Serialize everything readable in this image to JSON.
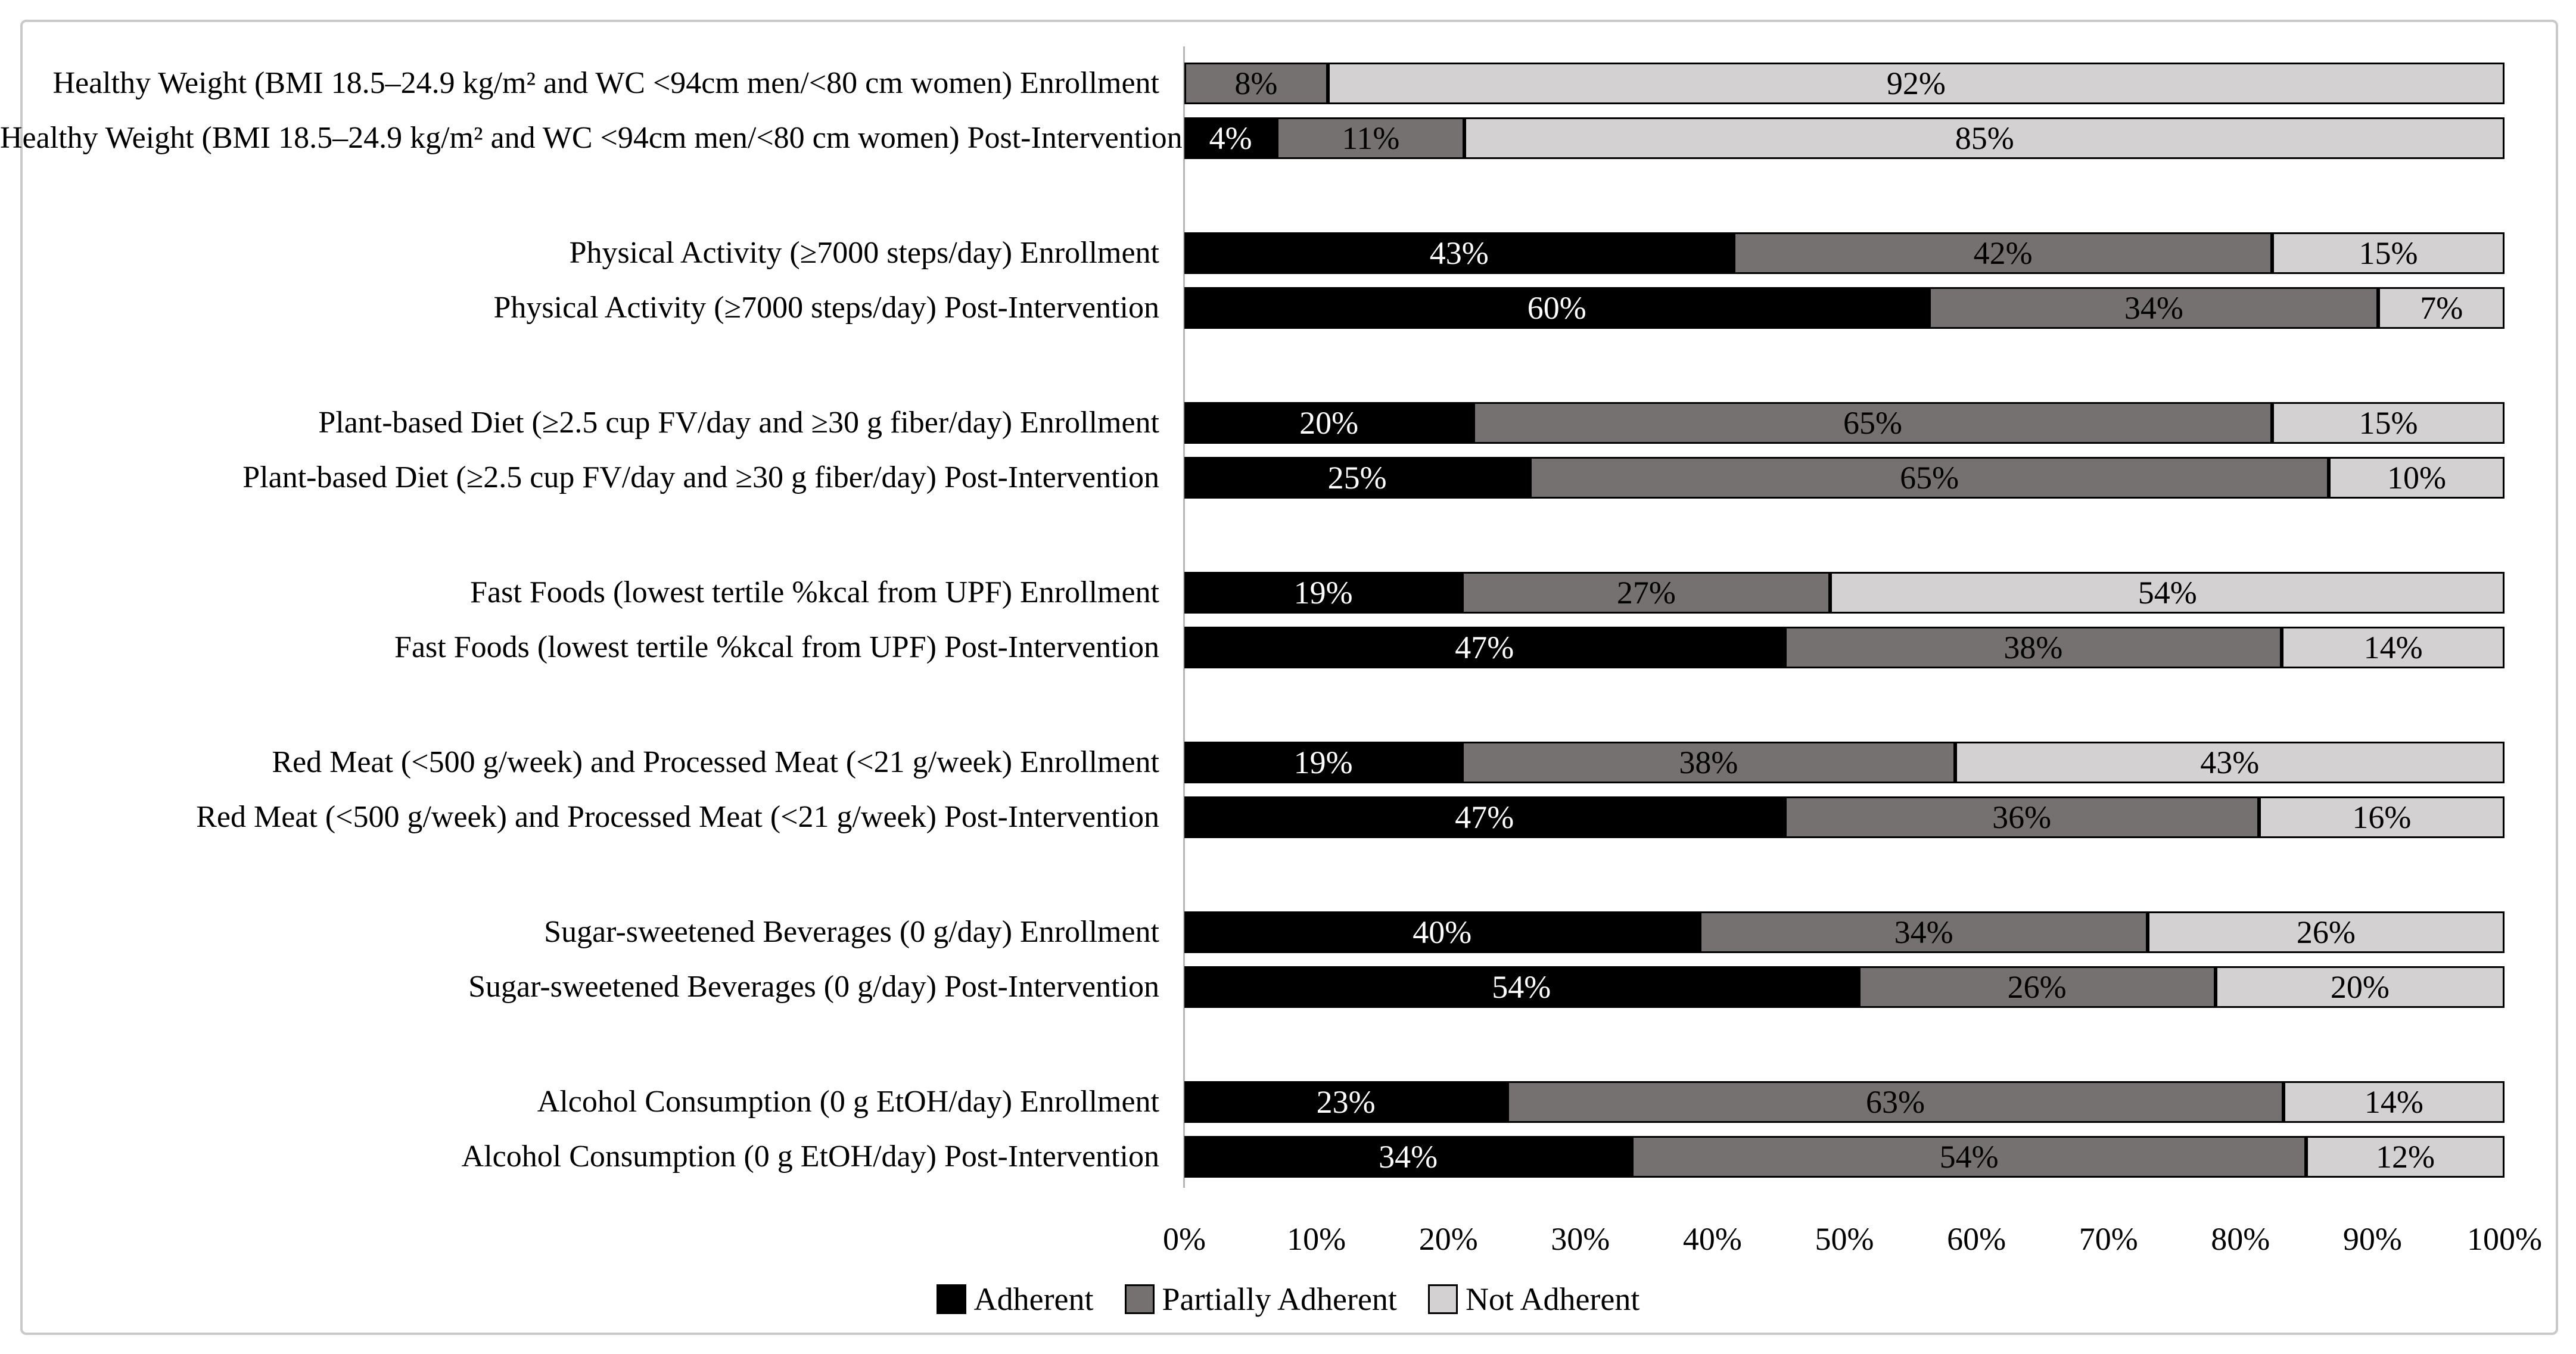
{
  "figure": {
    "background": "#ffffff",
    "frame_color": "#c9c9c9"
  },
  "chart_data": {
    "type": "bar",
    "orientation": "horizontal",
    "stacked": true,
    "stacked_100_percent": true,
    "title": "",
    "xlabel": "",
    "ylabel": "",
    "grid": false,
    "group_size": 2,
    "categories": [
      "Healthy Weight (BMI 18.5–24.9 kg/m² and WC <94cm men/<80 cm women) Enrollment",
      "Healthy Weight (BMI 18.5–24.9 kg/m² and WC <94cm men/<80 cm women) Post-Intervention",
      "Physical Activity (≥7000 steps/day) Enrollment",
      "Physical Activity (≥7000 steps/day) Post-Intervention",
      "Plant-based Diet (≥2.5 cup FV/day and ≥30 g fiber/day) Enrollment",
      "Plant-based Diet (≥2.5 cup FV/day and ≥30 g fiber/day) Post-Intervention",
      "Fast Foods (lowest tertile %kcal from UPF) Enrollment",
      "Fast Foods (lowest tertile %kcal from UPF) Post-Intervention",
      "Red Meat (<500 g/week) and Processed Meat (<21 g/week) Enrollment",
      "Red Meat (<500 g/week) and Processed Meat (<21 g/week) Post-Intervention",
      "Sugar-sweetened Beverages (0 g/day) Enrollment",
      "Sugar-sweetened Beverages (0 g/day) Post-Intervention",
      "Alcohol Consumption (0 g EtOH/day) Enrollment",
      "Alcohol Consumption (0 g EtOH/day) Post-Intervention"
    ],
    "series": [
      {
        "name": "Adherent",
        "color": "#000000",
        "label_text_color": "#ffffff",
        "values": [
          0,
          4,
          43,
          60,
          20,
          25,
          19,
          47,
          19,
          47,
          40,
          54,
          23,
          34
        ]
      },
      {
        "name": "Partially Adherent",
        "color": "#767171",
        "label_text_color": "#000000",
        "values": [
          8,
          11,
          42,
          34,
          65,
          65,
          27,
          38,
          38,
          36,
          34,
          26,
          63,
          54
        ]
      },
      {
        "name": "Not Adherent",
        "color": "#D3D1D1",
        "label_text_color": "#000000",
        "values": [
          92,
          85,
          15,
          7,
          15,
          10,
          54,
          14,
          43,
          16,
          26,
          20,
          14,
          12
        ]
      }
    ],
    "data_label_suffix": "%",
    "x_axis": {
      "min": 0,
      "max": 100,
      "ticks": [
        "0%",
        "10%",
        "20%",
        "30%",
        "40%",
        "50%",
        "60%",
        "70%",
        "80%",
        "90%",
        "100%"
      ]
    },
    "legend": {
      "position": "bottom",
      "items": [
        "Adherent",
        "Partially Adherent",
        "Not Adherent"
      ]
    },
    "segment_border_color": "#000000",
    "axis_line_color": "#b5b5b5"
  }
}
